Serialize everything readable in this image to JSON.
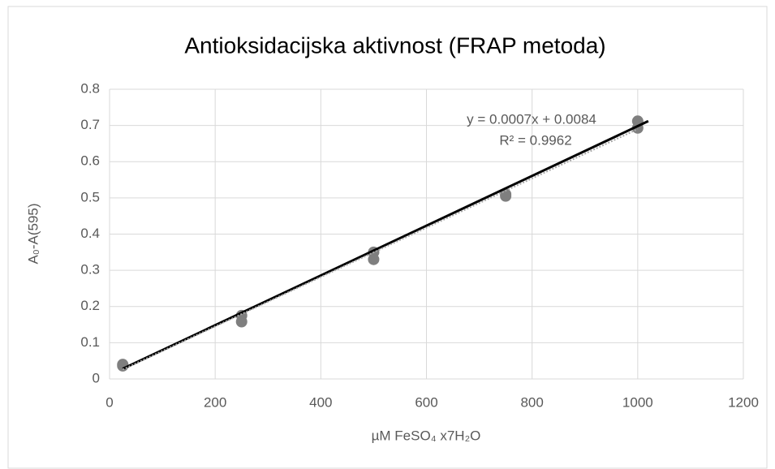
{
  "chart_data": {
    "type": "scatter",
    "title": "Antioksidacijska aktivnost (FRAP metoda)",
    "xlabel": "µM FeSO₄ x7H₂O",
    "ylabel": "A₀-A(595)",
    "series": [
      {
        "color": "#7f7f7f",
        "x": [
          25,
          25,
          250,
          250,
          500,
          500,
          750,
          750,
          1000,
          1000
        ],
        "values": [
          0.04,
          0.036,
          0.175,
          0.158,
          0.35,
          0.33,
          0.51,
          0.505,
          0.712,
          0.693
        ]
      }
    ],
    "trendlines": [
      {
        "color": "#000000",
        "style": "solid",
        "x": [
          25,
          1020
        ],
        "values": [
          0.028,
          0.712
        ]
      },
      {
        "color": "#a6a6a6",
        "style": "dotted",
        "x": [
          25,
          1000
        ],
        "values": [
          0.026,
          0.69
        ]
      }
    ],
    "annotations": [
      "y = 0.0007x + 0.0084",
      "R² = 0.9962"
    ],
    "xlim": [
      0,
      1200
    ],
    "xticks": [
      0,
      200,
      400,
      600,
      800,
      1000,
      1200
    ],
    "ylim": [
      0,
      0.8
    ],
    "yticks": [
      0,
      0.1,
      0.2,
      0.3,
      0.4,
      0.5,
      0.6,
      0.7,
      0.8
    ],
    "grid": true
  }
}
